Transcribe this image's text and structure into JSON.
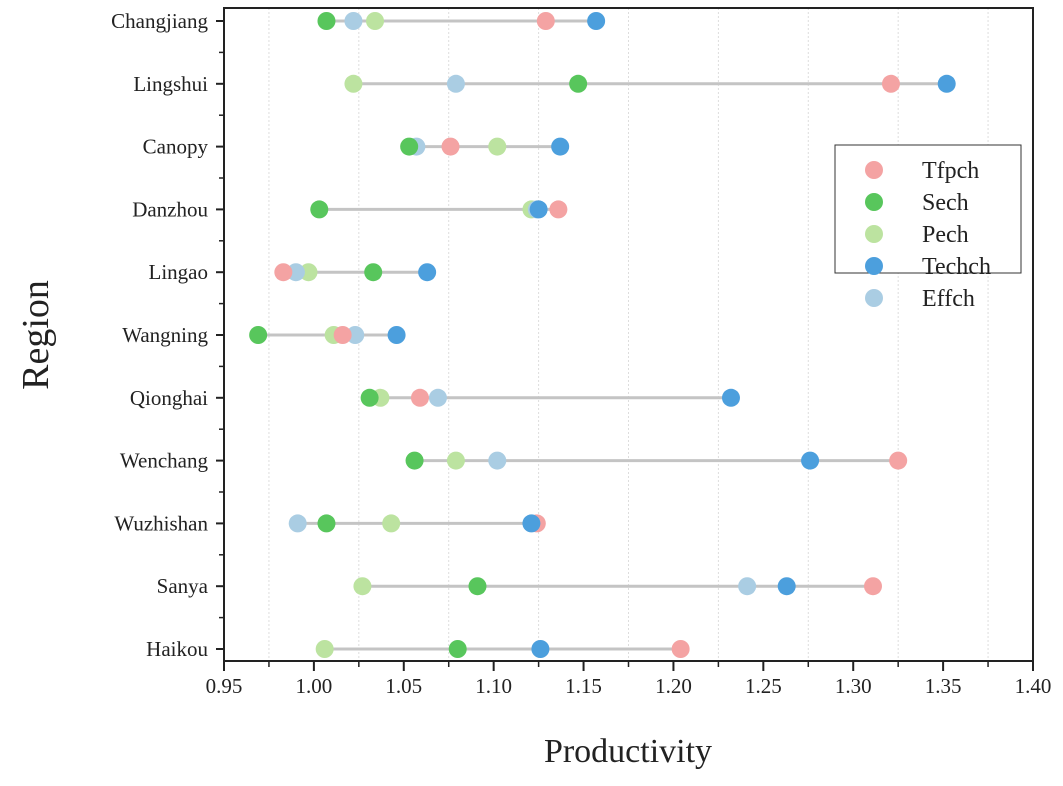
{
  "chart_data": {
    "type": "dot-range",
    "title": "",
    "xlabel": "Productivity",
    "ylabel": "Region",
    "xlim": [
      0.95,
      1.4
    ],
    "xticks": [
      "0.95",
      "1.00",
      "1.05",
      "1.10",
      "1.15",
      "1.20",
      "1.25",
      "1.30",
      "1.35",
      "1.40"
    ],
    "grid": "vertical dotted at minor ticks",
    "legend_position": "right",
    "categories": [
      "Changjiang",
      "Lingshui",
      "Canopy",
      "Danzhou",
      "Lingao",
      "Wangning",
      "Qionghai",
      "Wenchang",
      "Wuzhishan",
      "Sanya",
      "Haikou"
    ],
    "series": [
      {
        "name": "Tfpch",
        "color": "#F4A3A3",
        "values": [
          1.129,
          1.321,
          1.076,
          1.136,
          0.983,
          1.016,
          1.059,
          1.325,
          1.124,
          1.311,
          1.204
        ]
      },
      {
        "name": "Sech",
        "color": "#58C65C",
        "values": [
          1.007,
          1.147,
          1.053,
          1.003,
          1.033,
          0.969,
          1.031,
          1.056,
          1.007,
          1.091,
          1.08
        ]
      },
      {
        "name": "Pech",
        "color": "#BCE3A0",
        "values": [
          1.034,
          1.022,
          1.102,
          1.121,
          0.997,
          1.011,
          1.037,
          1.079,
          1.043,
          1.027,
          1.006
        ]
      },
      {
        "name": "Techch",
        "color": "#4C9FDD",
        "values": [
          1.157,
          1.352,
          1.137,
          1.125,
          1.063,
          1.046,
          1.232,
          1.276,
          1.121,
          1.263,
          1.126
        ]
      },
      {
        "name": "Effch",
        "color": "#AACDE3",
        "values": [
          1.022,
          1.079,
          1.057,
          1.124,
          0.99,
          1.023,
          1.069,
          1.102,
          0.991,
          1.241,
          null
        ]
      }
    ]
  }
}
